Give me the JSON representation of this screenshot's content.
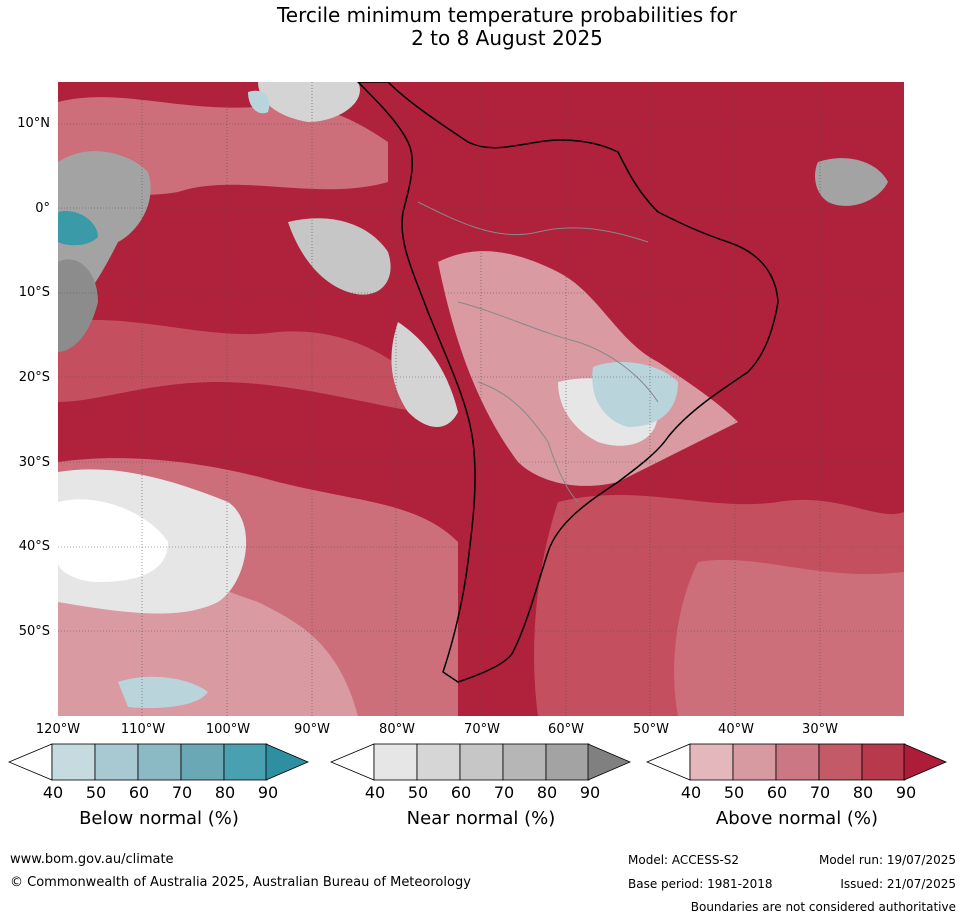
{
  "title": {
    "line1": "Tercile minimum temperature probabilities for",
    "line2": "2 to 8 August 2025"
  },
  "map": {
    "latitude_labels": [
      "10°N",
      "0°",
      "10°S",
      "20°S",
      "30°S",
      "40°S",
      "50°S"
    ],
    "longitude_labels": [
      "120°W",
      "110°W",
      "100°W",
      "90°W",
      "80°W",
      "70°W",
      "60°W",
      "50°W",
      "40°W",
      "30°W"
    ],
    "colors": {
      "ocean_above": "#b0213b",
      "above_60": "#cd6f7b",
      "above_70": "#c44f5f",
      "above_50": "#d99aa2",
      "near_normal": "#d4d4d4",
      "near_dark": "#8c8c8c",
      "below_normal": "#bad4dc",
      "below_dark": "#3a9aa8",
      "coast": "#000000",
      "border": "#888888"
    }
  },
  "legend": {
    "below": {
      "title": "Below normal (%)",
      "ticks": [
        "40",
        "50",
        "60",
        "70",
        "80",
        "90"
      ],
      "colors": [
        "#c6dbe0",
        "#a8c9d1",
        "#8bb9c4",
        "#6aa8b6",
        "#49a0b0",
        "#2e8fa0"
      ]
    },
    "near": {
      "title": "Near normal (%)",
      "ticks": [
        "40",
        "50",
        "60",
        "70",
        "80",
        "90"
      ],
      "colors": [
        "#e6e6e6",
        "#d6d6d6",
        "#c6c6c6",
        "#b6b6b6",
        "#a3a3a3",
        "#808080"
      ]
    },
    "above": {
      "title": "Above normal (%)",
      "ticks": [
        "40",
        "50",
        "60",
        "70",
        "80",
        "90"
      ],
      "colors": [
        "#e3b7bc",
        "#d89aa1",
        "#cc7884",
        "#c25a68",
        "#b8394c",
        "#ad1c38"
      ]
    }
  },
  "footer": {
    "website": "www.bom.gov.au/climate",
    "copyright": "© Commonwealth of Australia 2025, Australian Bureau of Meteorology",
    "model": "Model: ACCESS-S2",
    "base_period": "Base period: 1981-2018",
    "model_run": "Model run: 19/07/2025",
    "issued": "Issued: 21/07/2025",
    "disclaimer": "Boundaries are not considered authoritative"
  }
}
